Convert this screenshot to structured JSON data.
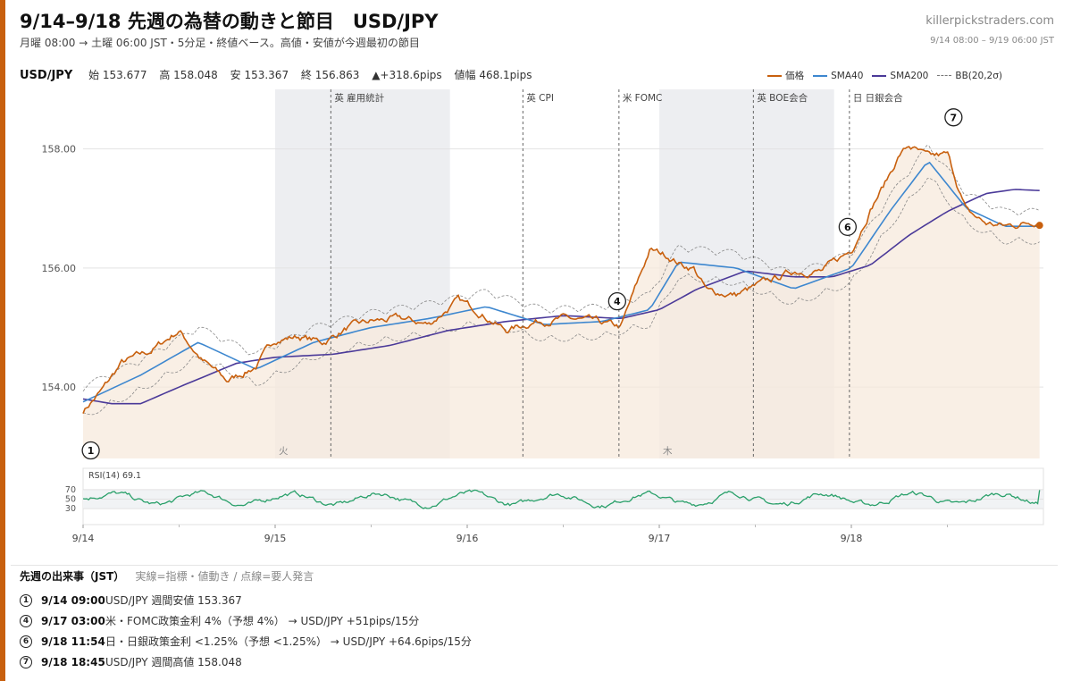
{
  "header": {
    "title": "9/14–9/18 先週の為替の動きと節目　USD/JPY",
    "subtitle": "月曜 08:00 → 土曜 06:00 JST・5分足・終値ベース。高値・安値が今週最初の節目",
    "site": "killerpickstraders.com",
    "range": "9/14 08:00 – 9/19 06:00 JST"
  },
  "stats": {
    "symbol": "USD/JPY",
    "open": "始 153.677",
    "high": "高 158.048",
    "low": "安 153.367",
    "close": "終 156.863",
    "change": "▲+318.6pips",
    "range": "値幅 468.1pips"
  },
  "legend": {
    "price": "価格",
    "sma40": "SMA40",
    "sma200": "SMA200",
    "bb": "BB(20,2σ)"
  },
  "colors": {
    "accent": "#c8600e",
    "price": "#c8600e",
    "sma40": "#3d87cf",
    "sma200": "#4b3a99",
    "rsi": "#2aa06a",
    "fill": "#f7e9dc",
    "shade": "#e8eaee"
  },
  "events_header": {
    "title": "先週の出来事（JST）",
    "note": "実線=指標・値動き / 点線=要人発言"
  },
  "events": [
    {
      "num": "1",
      "time": "9/14 09:00",
      "desc": "USD/JPY 週間安値 153.367"
    },
    {
      "num": "4",
      "time": "9/17 03:00",
      "desc": "米・FOMC政策金利 4%（予想 4%） → USD/JPY +51pips/15分"
    },
    {
      "num": "6",
      "time": "9/18 11:54",
      "desc": "日・日銀政策金利 <1.25%（予想 <1.25%） → USD/JPY +64.6pips/15分"
    },
    {
      "num": "7",
      "time": "9/18 18:45",
      "desc": "USD/JPY 週間高値 158.048"
    }
  ],
  "chart_data": {
    "type": "line",
    "title": "9/14–9/18 先週の為替の動きと節目　USD/JPY",
    "ylim": [
      152.8,
      159.0
    ],
    "yticks": [
      154.0,
      156.0,
      158.0
    ],
    "xlabels": [
      "9/14",
      "9/15",
      "9/16",
      "9/17",
      "9/18"
    ],
    "day_labels": [
      "火",
      "木"
    ],
    "grid": true,
    "legend_position": "top-right",
    "series": [
      {
        "name": "価格",
        "x": [
          0,
          0.1,
          0.2,
          0.35,
          0.5,
          0.62,
          0.75,
          0.9,
          1.0,
          1.12,
          1.25,
          1.38,
          1.5,
          1.65,
          1.8,
          1.95,
          2.05,
          2.2,
          2.35,
          2.5,
          2.65,
          2.8,
          2.95,
          3.05,
          3.12,
          3.18,
          3.25,
          3.4,
          3.55,
          3.7,
          3.85,
          4.0,
          4.1,
          4.18,
          4.25,
          4.3,
          4.4,
          4.5,
          4.6,
          4.7,
          4.8,
          4.9,
          4.98
        ],
        "values": [
          153.6,
          153.95,
          154.4,
          154.6,
          154.95,
          154.45,
          154.1,
          154.35,
          154.8,
          154.85,
          154.75,
          155.0,
          155.1,
          155.15,
          155.05,
          155.45,
          155.3,
          154.95,
          155.1,
          155.15,
          155.1,
          155.0,
          156.3,
          156.2,
          156.05,
          156.0,
          155.6,
          155.55,
          155.75,
          155.95,
          155.95,
          156.3,
          157.0,
          157.45,
          157.9,
          158.05,
          157.85,
          157.9,
          156.95,
          156.75,
          156.7,
          156.75,
          156.8
        ]
      },
      {
        "name": "SMA40",
        "x": [
          0,
          0.3,
          0.6,
          0.9,
          1.2,
          1.5,
          1.8,
          2.1,
          2.4,
          2.7,
          2.95,
          3.1,
          3.4,
          3.7,
          4.0,
          4.2,
          4.4,
          4.6,
          4.8,
          4.98
        ],
        "values": [
          153.75,
          154.2,
          154.75,
          154.3,
          154.75,
          155.0,
          155.15,
          155.35,
          155.05,
          155.1,
          155.3,
          156.1,
          156.0,
          155.65,
          156.0,
          156.95,
          157.8,
          157.0,
          156.7,
          156.7
        ]
      },
      {
        "name": "SMA200",
        "x": [
          0,
          0.15,
          0.3,
          0.5,
          0.8,
          1.0,
          1.3,
          1.6,
          1.9,
          2.2,
          2.5,
          2.8,
          3.0,
          3.2,
          3.45,
          3.7,
          3.9,
          4.1,
          4.3,
          4.5,
          4.7,
          4.85,
          4.98
        ],
        "values": [
          153.8,
          153.72,
          153.72,
          154.0,
          154.4,
          154.5,
          154.55,
          154.7,
          154.95,
          155.1,
          155.2,
          155.15,
          155.3,
          155.65,
          155.95,
          155.85,
          155.85,
          156.05,
          156.55,
          156.95,
          157.25,
          157.32,
          157.3
        ]
      }
    ],
    "events_x": [
      {
        "label": "英 雇用統計",
        "x": 1.29
      },
      {
        "label": "英 CPI",
        "x": 2.29
      },
      {
        "label": "米 FOMC",
        "x": 2.79
      },
      {
        "label": "英 BOE会合",
        "x": 3.49
      },
      {
        "label": "日 日銀会合",
        "x": 3.99
      }
    ],
    "markers": [
      {
        "num": "1",
        "x": 0.04,
        "y": 153.37
      },
      {
        "num": "4",
        "x": 2.79,
        "y": 155.5
      },
      {
        "num": "6",
        "x": 3.99,
        "y": 156.75
      },
      {
        "num": "7",
        "x": 4.49,
        "y": 158.2
      }
    ],
    "rsi": {
      "name": "RSI(14) 69.1",
      "ticks": [
        30,
        50,
        70
      ]
    }
  }
}
